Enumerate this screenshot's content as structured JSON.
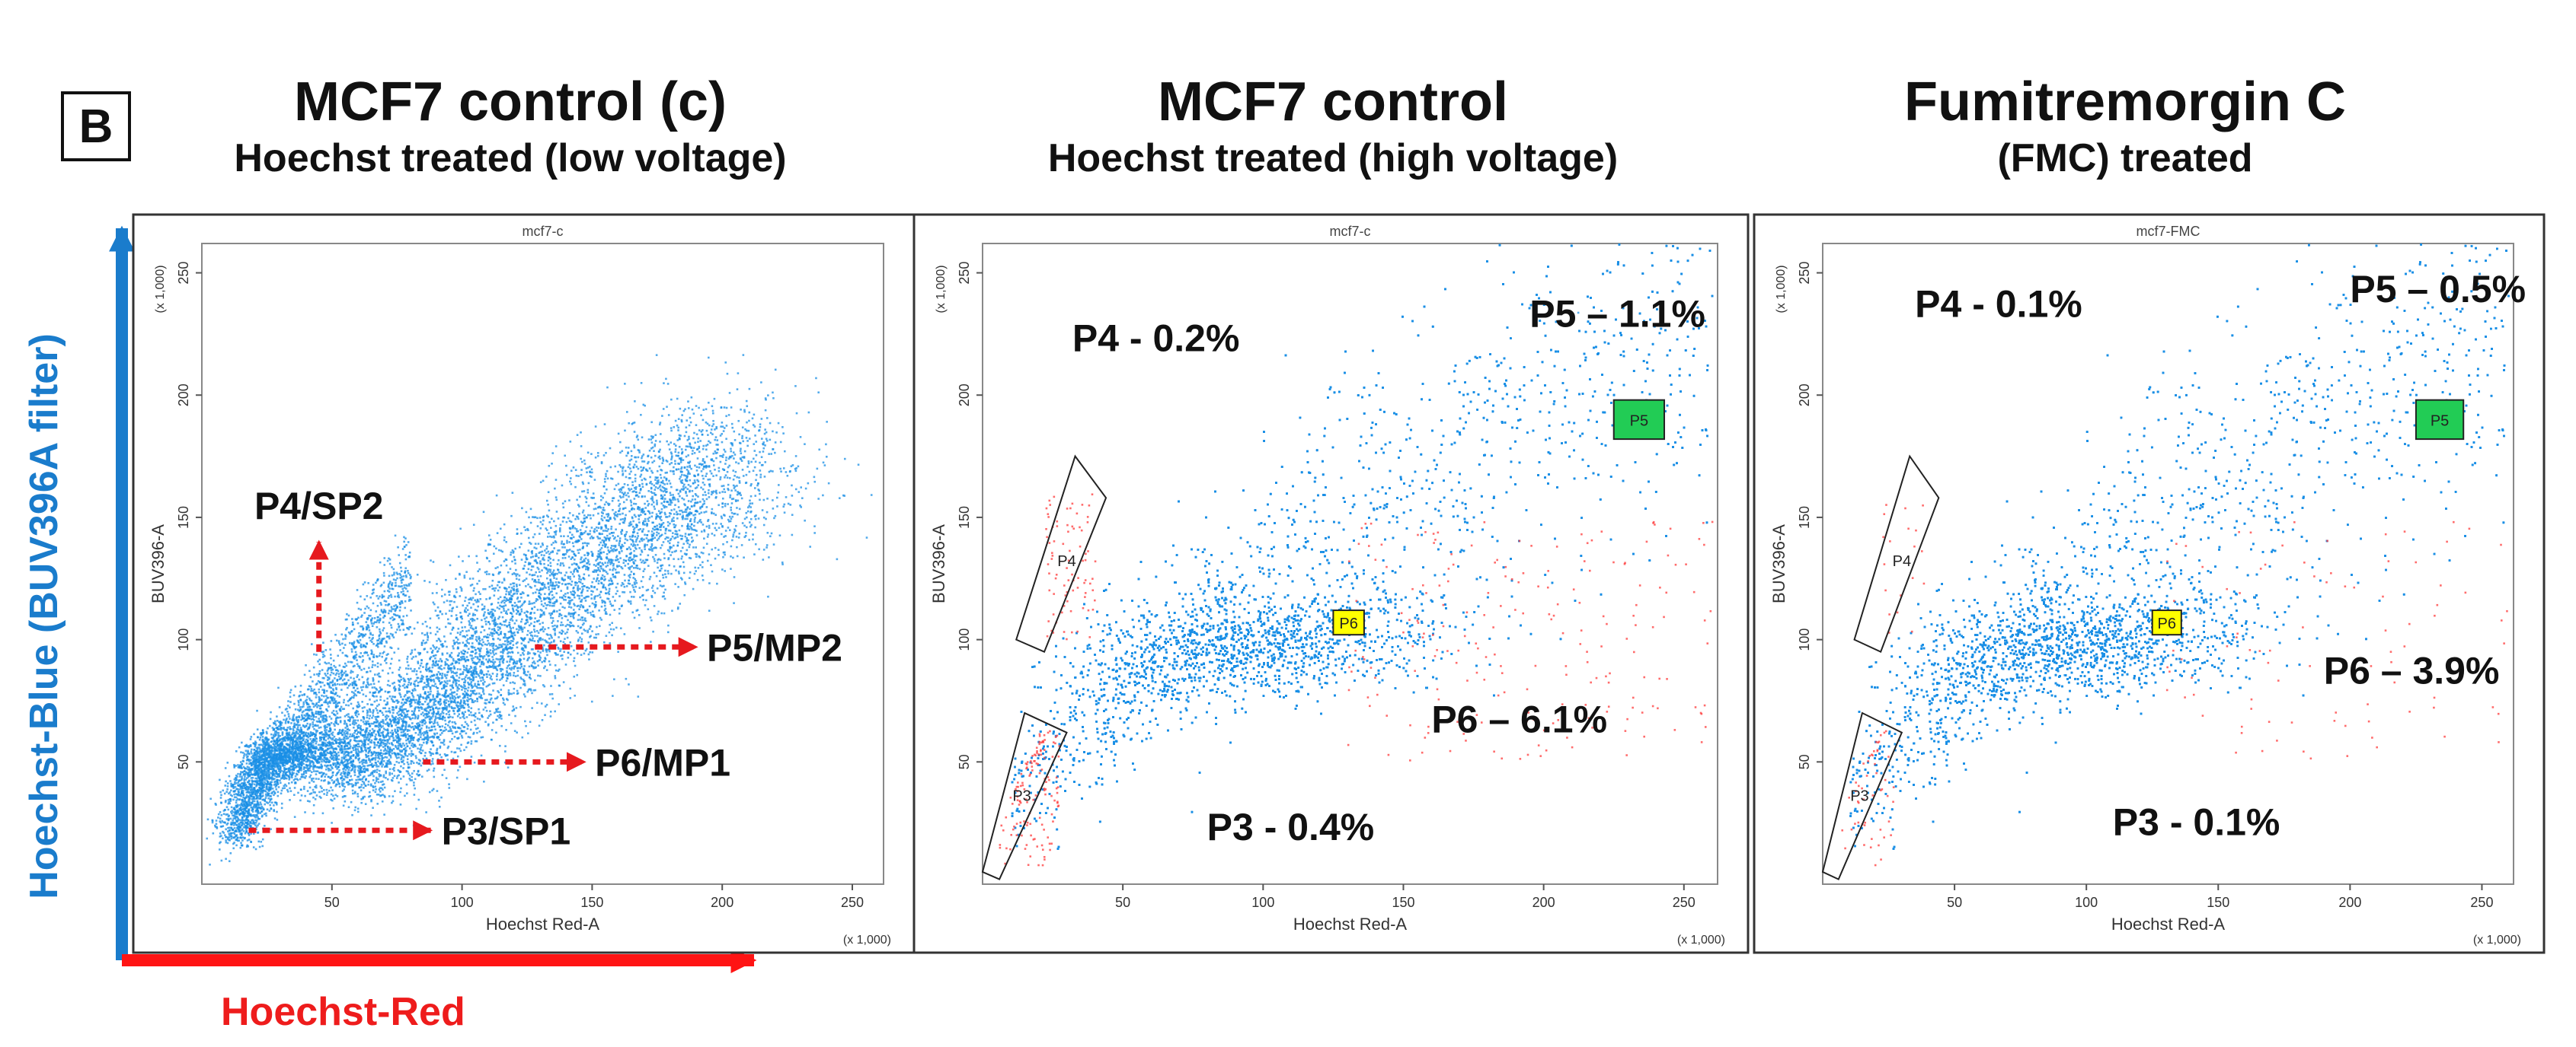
{
  "panel_letter": "B",
  "axis_captions": {
    "x": "Hoechst-Red",
    "y": "Hoechst-Blue (BUV396A filter)"
  },
  "colors": {
    "events": "#1a8fe6",
    "gated_events": "#ff3b3b",
    "gate_yellow": "#ffff00",
    "gate_green": "#22cc55",
    "x_arrow": "#ff1414",
    "y_arrow": "#1a7ccc",
    "dashed_arrow": "#e6191e"
  },
  "panels": [
    {
      "title": "MCF7 control (c)",
      "subtitle": "Hoechst treated (low voltage)"
    },
    {
      "title": "MCF7 control",
      "subtitle": "Hoechst treated (high voltage)"
    },
    {
      "title": "Fumitremorgin C",
      "subtitle": "(FMC) treated"
    }
  ],
  "chart_data": [
    {
      "type": "scatter",
      "sample_name": "mcf7-c",
      "xlabel": "Hoechst Red-A",
      "ylabel": "BUV396-A",
      "x_unit": "(x 1,000)",
      "y_unit": "(x 1,000)",
      "xlim": [
        0,
        262
      ],
      "ylim": [
        0,
        262
      ],
      "x_ticks": [
        "50",
        "100",
        "150",
        "200",
        "250"
      ],
      "y_ticks": [
        "50",
        "100",
        "150",
        "200",
        "250"
      ],
      "population": {
        "description_points": [
          [
            12,
            18
          ],
          [
            18,
            38
          ],
          [
            25,
            52
          ],
          [
            35,
            56
          ],
          [
            50,
            52
          ],
          [
            65,
            56
          ],
          [
            80,
            66
          ],
          [
            95,
            80
          ],
          [
            110,
            95
          ],
          [
            125,
            110
          ],
          [
            145,
            128
          ],
          [
            165,
            145
          ],
          [
            185,
            160
          ],
          [
            205,
            178
          ]
        ],
        "event_count": 9000
      },
      "annotations": [
        {
          "label": "P4/SP2",
          "arrow": "up",
          "arrow_from": [
            45,
            95
          ],
          "arrow_to": [
            45,
            140
          ]
        },
        {
          "label": "P5/MP2",
          "arrow": "right",
          "arrow_from": [
            128,
            97
          ],
          "arrow_to": [
            190,
            97
          ]
        },
        {
          "label": "P6/MP1",
          "arrow": "right",
          "arrow_from": [
            85,
            50
          ],
          "arrow_to": [
            147,
            50
          ]
        },
        {
          "label": "P3/SP1",
          "arrow": "right",
          "arrow_from": [
            18,
            22
          ],
          "arrow_to": [
            88,
            22
          ]
        }
      ]
    },
    {
      "type": "scatter",
      "sample_name": "mcf7-c",
      "xlabel": "Hoechst Red-A",
      "ylabel": "BUV396-A",
      "x_unit": "(x 1,000)",
      "y_unit": "(x 1,000)",
      "xlim": [
        0,
        262
      ],
      "ylim": [
        0,
        262
      ],
      "x_ticks": [
        "50",
        "100",
        "150",
        "200",
        "250"
      ],
      "y_ticks": [
        "50",
        "100",
        "150",
        "200",
        "250"
      ],
      "gates": [
        {
          "name": "P3",
          "shape": "polygon",
          "vertices": [
            [
              0,
              5
            ],
            [
              15,
              70
            ],
            [
              30,
              62
            ],
            [
              6,
              2
            ]
          ],
          "label_at": [
            14,
            34
          ]
        },
        {
          "name": "P4",
          "shape": "polygon",
          "vertices": [
            [
              12,
              100
            ],
            [
              33,
              175
            ],
            [
              44,
              158
            ],
            [
              22,
              95
            ]
          ],
          "label_at": [
            30,
            130
          ]
        },
        {
          "name": "P5",
          "shape": "rect",
          "x": [
            225,
            243
          ],
          "y": [
            182,
            198
          ],
          "fill": "green"
        },
        {
          "name": "P6",
          "shape": "rect",
          "x": [
            125,
            136
          ],
          "y": [
            102,
            112
          ],
          "fill": "yellow"
        }
      ],
      "stats": [
        {
          "text": "P4 - 0.2%",
          "at": [
            32,
            218
          ]
        },
        {
          "text": "P5 – 1.1%",
          "at": [
            195,
            228
          ]
        },
        {
          "text": "P6 – 6.1%",
          "at": [
            160,
            62
          ]
        },
        {
          "text": "P3 - 0.4%",
          "at": [
            80,
            18
          ]
        }
      ]
    },
    {
      "type": "scatter",
      "sample_name": "mcf7-FMC",
      "xlabel": "Hoechst Red-A",
      "ylabel": "BUV396-A",
      "x_unit": "(x 1,000)",
      "y_unit": "(x 1,000)",
      "xlim": [
        0,
        262
      ],
      "ylim": [
        0,
        262
      ],
      "x_ticks": [
        "50",
        "100",
        "150",
        "200",
        "250"
      ],
      "y_ticks": [
        "50",
        "100",
        "150",
        "200",
        "250"
      ],
      "gates": [
        {
          "name": "P3",
          "shape": "polygon",
          "vertices": [
            [
              0,
              5
            ],
            [
              15,
              70
            ],
            [
              30,
              62
            ],
            [
              6,
              2
            ]
          ],
          "label_at": [
            14,
            34
          ]
        },
        {
          "name": "P4",
          "shape": "polygon",
          "vertices": [
            [
              12,
              100
            ],
            [
              33,
              175
            ],
            [
              44,
              158
            ],
            [
              22,
              95
            ]
          ],
          "label_at": [
            30,
            130
          ]
        },
        {
          "name": "P5",
          "shape": "rect",
          "x": [
            225,
            243
          ],
          "y": [
            182,
            198
          ],
          "fill": "green"
        },
        {
          "name": "P6",
          "shape": "rect",
          "x": [
            125,
            136
          ],
          "y": [
            102,
            112
          ],
          "fill": "yellow"
        }
      ],
      "stats": [
        {
          "text": "P4 - 0.1%",
          "at": [
            35,
            232
          ]
        },
        {
          "text": "P5 – 0.5%",
          "at": [
            200,
            238
          ]
        },
        {
          "text": "P6 – 3.9%",
          "at": [
            190,
            82
          ]
        },
        {
          "text": "P3 - 0.1%",
          "at": [
            110,
            20
          ]
        }
      ]
    }
  ]
}
